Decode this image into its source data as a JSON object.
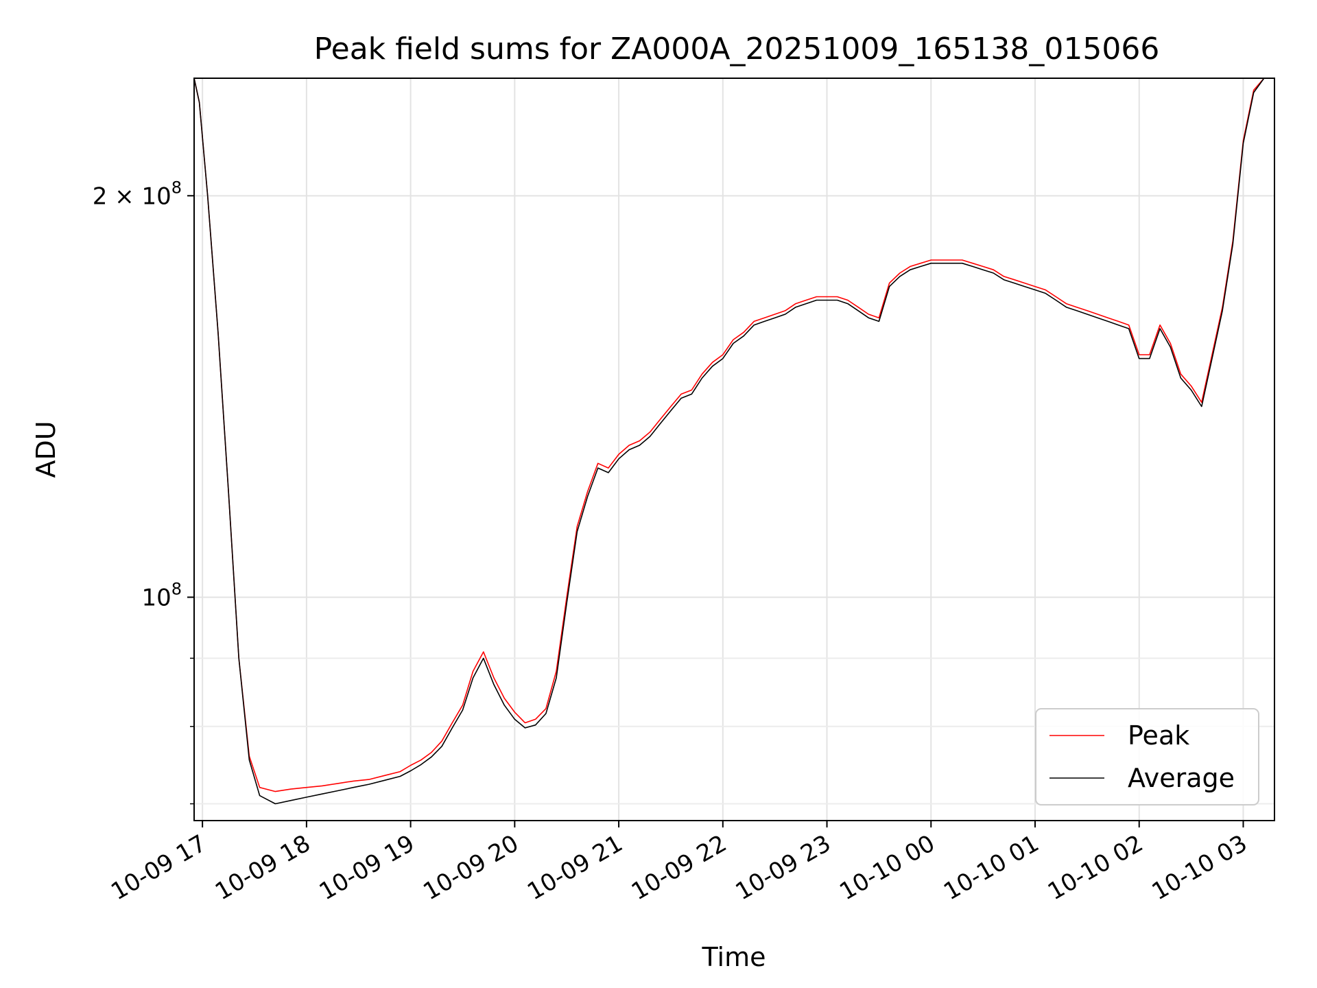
{
  "chart_data": {
    "type": "line",
    "title": "Peak field sums for ZA000A_20251009_165138_015066",
    "xlabel": "Time",
    "ylabel": "ADU",
    "yscale": "log",
    "ylim": [
      68000000,
      245000000
    ],
    "xlim_hours": [
      16.92,
      27.3
    ],
    "grid": true,
    "legend_position": "lower right",
    "x_ticks": [
      {
        "hour": 17,
        "label": "10-09 17"
      },
      {
        "hour": 18,
        "label": "10-09 18"
      },
      {
        "hour": 19,
        "label": "10-09 19"
      },
      {
        "hour": 20,
        "label": "10-09 20"
      },
      {
        "hour": 21,
        "label": "10-09 21"
      },
      {
        "hour": 22,
        "label": "10-09 22"
      },
      {
        "hour": 23,
        "label": "10-09 23"
      },
      {
        "hour": 24,
        "label": "10-10 00"
      },
      {
        "hour": 25,
        "label": "10-10 01"
      },
      {
        "hour": 26,
        "label": "10-10 02"
      },
      {
        "hour": 27,
        "label": "10-10 03"
      }
    ],
    "y_major_ticks": [
      {
        "value": 100000000,
        "base": "10",
        "exp": "8",
        "mult": ""
      },
      {
        "value": 200000000,
        "base": "10",
        "exp": "8",
        "mult": "2 × "
      }
    ],
    "y_minor_ticks": [
      70000000,
      80000000,
      90000000
    ],
    "x_hours": [
      16.92,
      16.97,
      17.05,
      17.15,
      17.25,
      17.35,
      17.45,
      17.55,
      17.7,
      17.85,
      18.0,
      18.15,
      18.3,
      18.45,
      18.6,
      18.75,
      18.9,
      19.0,
      19.1,
      19.2,
      19.3,
      19.4,
      19.5,
      19.6,
      19.7,
      19.8,
      19.9,
      20.0,
      20.1,
      20.2,
      20.3,
      20.4,
      20.5,
      20.6,
      20.7,
      20.8,
      20.9,
      21.0,
      21.1,
      21.2,
      21.3,
      21.4,
      21.5,
      21.6,
      21.7,
      21.8,
      21.9,
      22.0,
      22.1,
      22.2,
      22.3,
      22.4,
      22.5,
      22.6,
      22.7,
      22.8,
      22.9,
      23.0,
      23.1,
      23.2,
      23.3,
      23.4,
      23.5,
      23.6,
      23.7,
      23.8,
      23.9,
      24.0,
      24.1,
      24.2,
      24.3,
      24.4,
      24.5,
      24.6,
      24.7,
      24.8,
      24.9,
      25.0,
      25.1,
      25.2,
      25.3,
      25.4,
      25.5,
      25.6,
      25.7,
      25.8,
      25.9,
      26.0,
      26.1,
      26.2,
      26.3,
      26.4,
      26.5,
      26.6,
      26.7,
      26.8,
      26.9,
      27.0,
      27.1,
      27.2,
      27.3
    ],
    "series": [
      {
        "name": "Peak",
        "color": "#ff0000",
        "values": [
          245000000,
          235000000,
          200000000,
          158000000,
          120000000,
          90000000,
          76000000,
          72000000,
          71500000,
          71800000,
          72000000,
          72200000,
          72500000,
          72800000,
          73000000,
          73500000,
          74000000,
          74800000,
          75500000,
          76500000,
          78000000,
          80500000,
          83000000,
          88000000,
          91000000,
          87000000,
          84000000,
          82000000,
          80500000,
          81000000,
          82500000,
          88000000,
          100000000,
          113000000,
          120000000,
          126000000,
          125000000,
          128000000,
          130000000,
          131000000,
          133000000,
          136000000,
          139000000,
          142000000,
          143000000,
          147000000,
          150000000,
          152000000,
          156000000,
          158000000,
          161000000,
          162000000,
          163000000,
          164000000,
          166000000,
          167000000,
          168000000,
          168000000,
          168000000,
          167000000,
          165000000,
          163000000,
          162000000,
          172000000,
          175000000,
          177000000,
          178000000,
          179000000,
          179000000,
          179000000,
          179000000,
          178000000,
          177000000,
          176000000,
          174000000,
          173000000,
          172000000,
          171000000,
          170000000,
          168000000,
          166000000,
          165000000,
          164000000,
          163000000,
          162000000,
          161000000,
          160000000,
          152000000,
          152000000,
          160000000,
          155000000,
          147000000,
          144000000,
          140000000,
          152000000,
          165000000,
          185000000,
          220000000,
          240000000,
          245000000,
          245000000
        ]
      },
      {
        "name": "Average",
        "color": "#000000",
        "values": [
          245000000,
          235000000,
          200000000,
          158000000,
          120000000,
          90000000,
          75500000,
          71000000,
          70000000,
          70400000,
          70800000,
          71200000,
          71600000,
          72000000,
          72400000,
          72900000,
          73400000,
          74100000,
          74900000,
          75900000,
          77300000,
          79800000,
          82300000,
          87000000,
          90000000,
          86000000,
          83000000,
          81000000,
          79800000,
          80200000,
          81800000,
          87000000,
          99000000,
          112000000,
          119000000,
          125000000,
          124000000,
          127000000,
          129000000,
          130000000,
          132000000,
          135000000,
          138000000,
          141000000,
          142000000,
          146000000,
          149000000,
          151000000,
          155000000,
          157000000,
          160000000,
          161000000,
          162000000,
          163000000,
          165000000,
          166000000,
          167000000,
          167000000,
          167000000,
          166000000,
          164000000,
          162000000,
          161000000,
          171000000,
          174000000,
          176000000,
          177000000,
          178000000,
          178000000,
          178000000,
          178000000,
          177000000,
          176000000,
          175000000,
          173000000,
          172000000,
          171000000,
          170000000,
          169000000,
          167000000,
          165000000,
          164000000,
          163000000,
          162000000,
          161000000,
          160000000,
          159000000,
          151000000,
          151000000,
          159000000,
          154000000,
          146000000,
          143000000,
          139000000,
          151000000,
          164000000,
          184000000,
          219000000,
          239000000,
          245000000,
          245000000
        ]
      }
    ]
  }
}
